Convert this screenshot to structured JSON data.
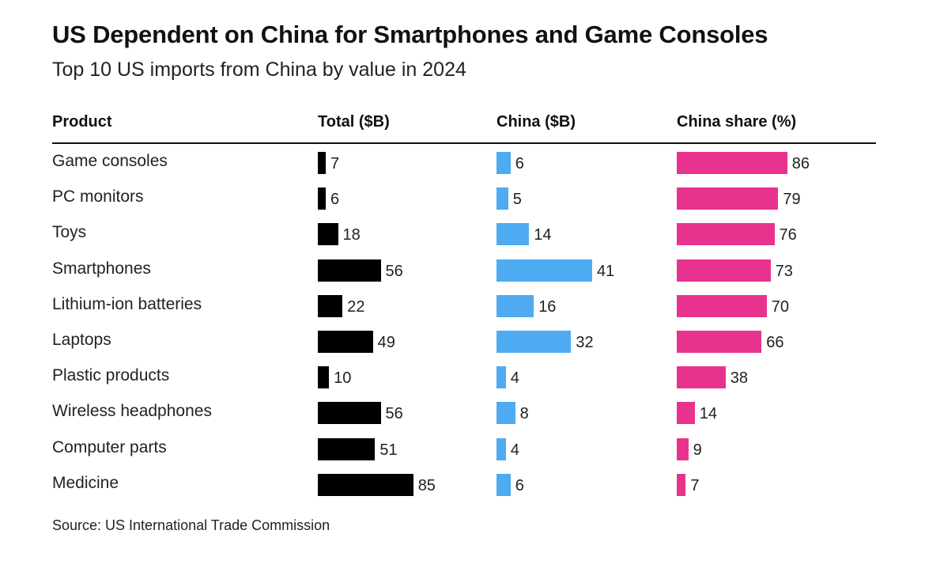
{
  "title": "US Dependent on China for Smartphones and Game Consoles",
  "subtitle": "Top 10 US imports from China by value in 2024",
  "headers": {
    "product": "Product",
    "total": "Total ($B)",
    "china": "China ($B)",
    "share": "China share (%)"
  },
  "source": "Source: US International Trade Commission",
  "colors": {
    "total": "#000000",
    "china": "#4eabf2",
    "share": "#e8338e"
  },
  "chart_data": {
    "type": "table",
    "title": "US Dependent on China for Smartphones and Game Consoles",
    "subtitle": "Top 10 US imports from China by value in 2024",
    "columns": [
      "Product",
      "Total ($B)",
      "China ($B)",
      "China share (%)"
    ],
    "rows": [
      {
        "product": "Game consoles",
        "total": 7,
        "china": 6,
        "share": 86
      },
      {
        "product": "PC monitors",
        "total": 6,
        "china": 5,
        "share": 79
      },
      {
        "product": "Toys",
        "total": 18,
        "china": 14,
        "share": 76
      },
      {
        "product": "Smartphones",
        "total": 56,
        "china": 41,
        "share": 73
      },
      {
        "product": "Lithium-ion batteries",
        "total": 22,
        "china": 16,
        "share": 70
      },
      {
        "product": "Laptops",
        "total": 49,
        "china": 32,
        "share": 66
      },
      {
        "product": "Plastic products",
        "total": 10,
        "china": 4,
        "share": 38
      },
      {
        "product": "Wireless headphones",
        "total": 56,
        "china": 8,
        "share": 14
      },
      {
        "product": "Computer parts",
        "total": 51,
        "china": 4,
        "share": 9
      },
      {
        "product": "Medicine",
        "total": 85,
        "china": 6,
        "share": 7
      }
    ]
  }
}
